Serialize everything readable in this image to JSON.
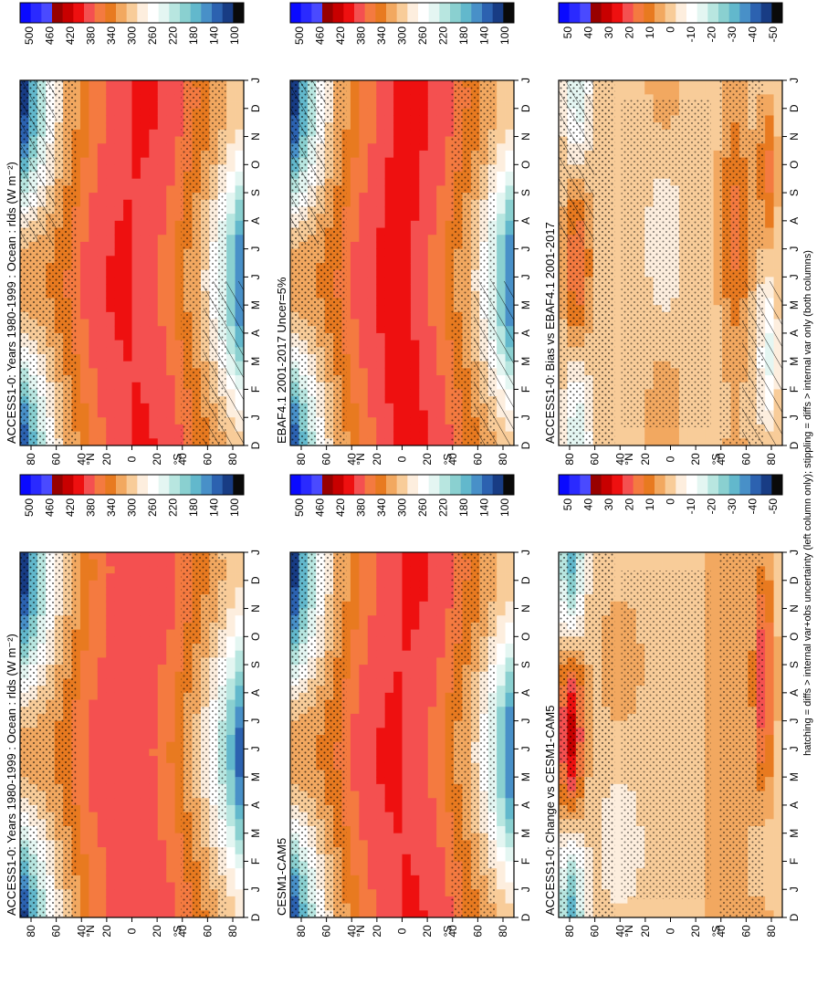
{
  "footer": {
    "note": "hatching = diffs > internal var+obs uncertainty (left column only); stippling = diffs > internal var only (both columns)"
  },
  "axes": {
    "months": [
      "D",
      "J",
      "F",
      "M",
      "A",
      "M",
      "J",
      "J",
      "A",
      "S",
      "O",
      "N",
      "D",
      "J"
    ],
    "lat_ticks": [
      "80",
      "60",
      "40",
      "20",
      "0",
      "20",
      "40",
      "60",
      "80"
    ],
    "lat_unit_N": "°N",
    "lat_unit_S": "°S"
  },
  "chart_data": [
    {
      "id": "p1",
      "type": "heatmap",
      "title": "ACCESS1-0: Years 1980-1999 : Ocean : rlds (W m⁻²)",
      "x": [
        "J",
        "F",
        "M",
        "A",
        "M",
        "J",
        "J",
        "A",
        "S",
        "O",
        "N",
        "D"
      ],
      "y_lat": [
        -80,
        80
      ],
      "levels": [
        100,
        120,
        140,
        160,
        180,
        200,
        220,
        240,
        260,
        280,
        300,
        320,
        340,
        360,
        380,
        400,
        420,
        440,
        460,
        480,
        500
      ],
      "colorbar_labels": [
        "500",
        "460",
        "420",
        "380",
        "340",
        "300",
        "260",
        "220",
        "180",
        "140",
        "100"
      ],
      "hatching": true,
      "stippling": true
    },
    {
      "id": "p2",
      "type": "heatmap",
      "title": "ACCESS1-0: Years 1980-1999 : Ocean : rlds (W m⁻²)",
      "x": [
        "J",
        "F",
        "M",
        "A",
        "M",
        "J",
        "J",
        "A",
        "S",
        "O",
        "N",
        "D"
      ],
      "y_lat": [
        -80,
        80
      ],
      "levels": [
        100,
        120,
        140,
        160,
        180,
        200,
        220,
        240,
        260,
        280,
        300,
        320,
        340,
        360,
        380,
        400,
        420,
        440,
        460,
        480,
        500
      ],
      "colorbar_labels": [
        "500",
        "460",
        "420",
        "380",
        "340",
        "300",
        "260",
        "220",
        "180",
        "140",
        "100"
      ],
      "hatching": false,
      "stippling": true
    },
    {
      "id": "p3",
      "type": "heatmap",
      "title": "EBAF4.1 2001-2017 Uncer=5%",
      "x": [
        "J",
        "F",
        "M",
        "A",
        "M",
        "J",
        "J",
        "A",
        "S",
        "O",
        "N",
        "D"
      ],
      "y_lat": [
        -80,
        80
      ],
      "levels": [
        100,
        120,
        140,
        160,
        180,
        200,
        220,
        240,
        260,
        280,
        300,
        320,
        340,
        360,
        380,
        400,
        420,
        440,
        460,
        480,
        500
      ],
      "colorbar_labels": [
        "500",
        "460",
        "420",
        "380",
        "340",
        "300",
        "260",
        "220",
        "180",
        "140",
        "100"
      ],
      "hatching": true,
      "stippling": true
    },
    {
      "id": "p4",
      "type": "heatmap",
      "title": "CESM1-CAM5",
      "x": [
        "J",
        "F",
        "M",
        "A",
        "M",
        "J",
        "J",
        "A",
        "S",
        "O",
        "N",
        "D"
      ],
      "y_lat": [
        -80,
        80
      ],
      "levels": [
        100,
        120,
        140,
        160,
        180,
        200,
        220,
        240,
        260,
        280,
        300,
        320,
        340,
        360,
        380,
        400,
        420,
        440,
        460,
        480,
        500
      ],
      "colorbar_labels": [
        "500",
        "460",
        "420",
        "380",
        "340",
        "300",
        "260",
        "220",
        "180",
        "140",
        "100"
      ],
      "hatching": false,
      "stippling": true
    },
    {
      "id": "p5",
      "type": "heatmap",
      "title": "ACCESS1-0: Bias vs EBAF4.1 2001-2017",
      "x": [
        "J",
        "F",
        "M",
        "A",
        "M",
        "J",
        "J",
        "A",
        "S",
        "O",
        "N",
        "D"
      ],
      "y_lat": [
        -80,
        80
      ],
      "levels": [
        -50,
        -45,
        -40,
        -35,
        -30,
        -25,
        -20,
        -15,
        -10,
        -5,
        0,
        5,
        10,
        15,
        20,
        25,
        30,
        35,
        40,
        45,
        50
      ],
      "colorbar_labels": [
        "50",
        "40",
        "30",
        "20",
        "10",
        "0",
        "-10",
        "-20",
        "-30",
        "-40",
        "-50"
      ],
      "hatching": true,
      "stippling": true
    },
    {
      "id": "p6",
      "type": "heatmap",
      "title": "ACCESS1-0: Change vs CESM1-CAM5",
      "x": [
        "J",
        "F",
        "M",
        "A",
        "M",
        "J",
        "J",
        "A",
        "S",
        "O",
        "N",
        "D"
      ],
      "y_lat": [
        -80,
        80
      ],
      "levels": [
        -50,
        -45,
        -40,
        -35,
        -30,
        -25,
        -20,
        -15,
        -10,
        -5,
        0,
        5,
        10,
        15,
        20,
        25,
        30,
        35,
        40,
        45,
        50
      ],
      "colorbar_labels": [
        "50",
        "40",
        "30",
        "20",
        "10",
        "0",
        "-10",
        "-20",
        "-30",
        "-40",
        "-50"
      ],
      "hatching": false,
      "stippling": true
    }
  ],
  "colors": {
    "abs_scale": [
      "#0a0aff",
      "#2a2aff",
      "#4a4aff",
      "#980000",
      "#c80000",
      "#ee1010",
      "#f45050",
      "#f47a40",
      "#e87a20",
      "#f2a860",
      "#f8cc99",
      "#fdeede",
      "#ffffff",
      "#e4f6f2",
      "#b8e6e0",
      "#8ad0d0",
      "#62b8cc",
      "#4890c8",
      "#2c62b0",
      "#183c84",
      "#0a0a0a"
    ],
    "diff_scale": [
      "#0a0aff",
      "#2a2aff",
      "#4a4aff",
      "#980000",
      "#c80000",
      "#ee1010",
      "#f45050",
      "#f47a40",
      "#e87a20",
      "#f2a860",
      "#f8cc99",
      "#fdeede",
      "#ffffff",
      "#e4f6f2",
      "#b8e6e0",
      "#8ad0d0",
      "#62b8cc",
      "#4890c8",
      "#2c62b0",
      "#183c84",
      "#0a0a0a"
    ]
  }
}
